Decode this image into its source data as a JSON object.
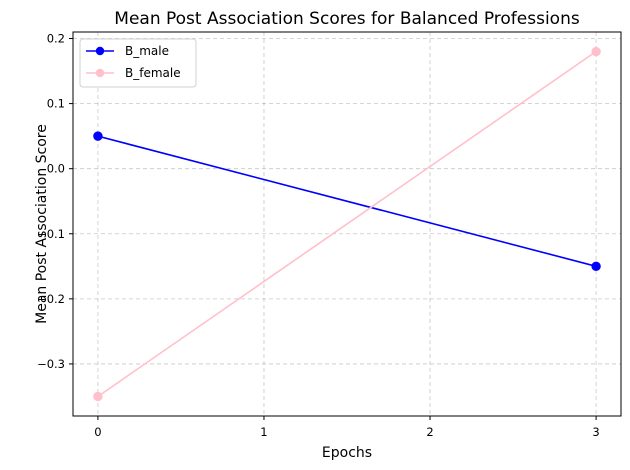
{
  "chart_data": {
    "type": "line",
    "title": "Mean Post Association Scores for Balanced Professions",
    "xlabel": "Epochs",
    "ylabel": "Mean Post Association Score",
    "xlim": [
      -0.15,
      3.15
    ],
    "ylim": [
      -0.38,
      0.21
    ],
    "xticks": [
      0,
      1,
      2,
      3
    ],
    "xtick_labels": [
      "0",
      "1",
      "2",
      "3"
    ],
    "yticks": [
      -0.3,
      -0.2,
      -0.1,
      0.0,
      0.1,
      0.2
    ],
    "ytick_labels": [
      "−0.3",
      "−0.2",
      "−0.1",
      "0.0",
      "0.1",
      "0.2"
    ],
    "grid": true,
    "legend_position": "top-left",
    "series": [
      {
        "name": "B_male",
        "color": "#0000ff",
        "marker": "circle",
        "x": [
          0,
          3
        ],
        "y": [
          0.05,
          -0.15
        ]
      },
      {
        "name": "B_female",
        "color": "#ffc0cb",
        "marker": "circle",
        "x": [
          0,
          3
        ],
        "y": [
          -0.35,
          0.18
        ]
      }
    ]
  }
}
